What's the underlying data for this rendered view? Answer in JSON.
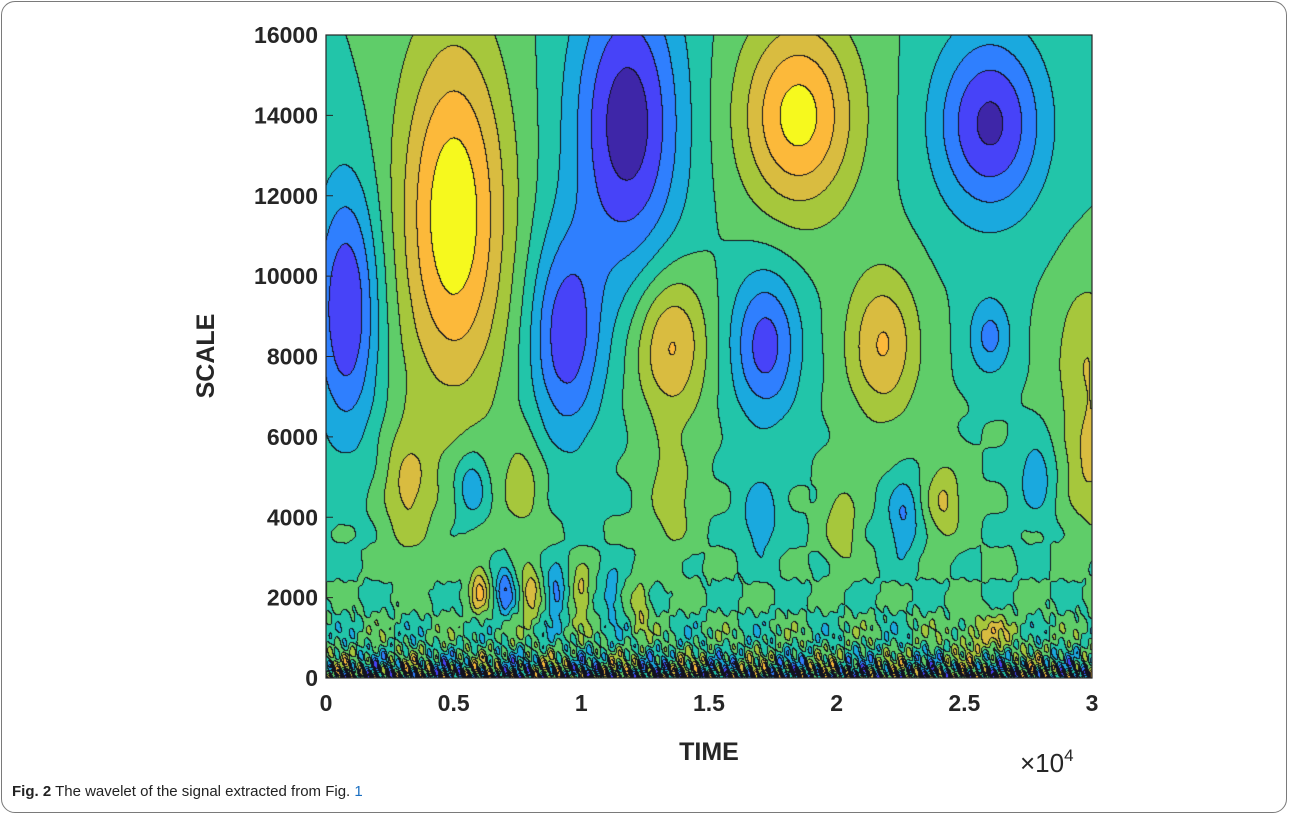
{
  "chart_data": {
    "type": "heatmap",
    "subtype": "filled-contour",
    "title": "",
    "xlabel": "TIME",
    "ylabel": "SCALE",
    "xlim": [
      0,
      30000
    ],
    "ylim": [
      0,
      16000
    ],
    "x_ticks": [
      "0",
      "0.5",
      "1",
      "1.5",
      "2",
      "2.5",
      "3"
    ],
    "x_tick_values": [
      0,
      5000,
      10000,
      15000,
      20000,
      25000,
      30000
    ],
    "x_multiplier": "×10",
    "x_multiplier_exp": "4",
    "y_ticks": [
      "0",
      "2000",
      "4000",
      "6000",
      "8000",
      "10000",
      "12000",
      "14000",
      "16000"
    ],
    "y_tick_values": [
      0,
      2000,
      4000,
      6000,
      8000,
      10000,
      12000,
      14000,
      16000
    ],
    "colormap": [
      "#3e26a8",
      "#4743f8",
      "#2f7ffe",
      "#1aa9de",
      "#22c5a9",
      "#5fcd69",
      "#a6c73c",
      "#d9bc40",
      "#fcb93a",
      "#f6f91e"
    ],
    "features": [
      {
        "x": 5000,
        "y": 11500,
        "sx": 1500,
        "sy": 3200,
        "a": 1.25
      },
      {
        "x": 18500,
        "y": 14000,
        "sx": 1600,
        "sy": 1700,
        "a": 1.15
      },
      {
        "x": 11800,
        "y": 13800,
        "sx": 1500,
        "sy": 2600,
        "a": -1.2
      },
      {
        "x": 800,
        "y": 9200,
        "sx": 900,
        "sy": 2200,
        "a": -1.05
      },
      {
        "x": 9400,
        "y": 8500,
        "sx": 1000,
        "sy": 1800,
        "a": -0.95
      },
      {
        "x": 26000,
        "y": 13800,
        "sx": 1500,
        "sy": 1600,
        "a": -1.1
      },
      {
        "x": 13500,
        "y": 8300,
        "sx": 1000,
        "sy": 1300,
        "a": 0.85
      },
      {
        "x": 17200,
        "y": 8300,
        "sx": 950,
        "sy": 1300,
        "a": -0.9
      },
      {
        "x": 21800,
        "y": 8300,
        "sx": 1000,
        "sy": 1300,
        "a": 0.8
      },
      {
        "x": 26000,
        "y": 8500,
        "sx": 600,
        "sy": 700,
        "a": -0.6
      },
      {
        "x": 29800,
        "y": 8000,
        "sx": 900,
        "sy": 1400,
        "a": 0.5
      },
      {
        "x": 3200,
        "y": 4700,
        "sx": 700,
        "sy": 1100,
        "a": 0.55
      },
      {
        "x": 5700,
        "y": 4800,
        "sx": 450,
        "sy": 600,
        "a": -0.55
      },
      {
        "x": 7700,
        "y": 4800,
        "sx": 600,
        "sy": 900,
        "a": 0.4
      },
      {
        "x": 13500,
        "y": 4500,
        "sx": 600,
        "sy": 1000,
        "a": 0.45
      },
      {
        "x": 17000,
        "y": 4000,
        "sx": 500,
        "sy": 700,
        "a": -0.5
      },
      {
        "x": 20200,
        "y": 3800,
        "sx": 450,
        "sy": 700,
        "a": 0.5
      },
      {
        "x": 22600,
        "y": 4000,
        "sx": 450,
        "sy": 700,
        "a": -0.55
      },
      {
        "x": 24200,
        "y": 4400,
        "sx": 500,
        "sy": 700,
        "a": 0.55
      },
      {
        "x": 27800,
        "y": 5000,
        "sx": 500,
        "sy": 700,
        "a": -0.45
      },
      {
        "x": 29900,
        "y": 5200,
        "sx": 700,
        "sy": 1100,
        "a": 0.5
      },
      {
        "x": 6000,
        "y": 2200,
        "sx": 250,
        "sy": 450,
        "a": 0.75
      },
      {
        "x": 7000,
        "y": 2200,
        "sx": 250,
        "sy": 450,
        "a": -0.75
      },
      {
        "x": 8000,
        "y": 2100,
        "sx": 250,
        "sy": 450,
        "a": 0.75
      },
      {
        "x": 9000,
        "y": 2100,
        "sx": 250,
        "sy": 450,
        "a": -0.7
      },
      {
        "x": 10000,
        "y": 2100,
        "sx": 250,
        "sy": 450,
        "a": 0.7
      },
      {
        "x": 11200,
        "y": 2100,
        "sx": 250,
        "sy": 450,
        "a": -0.5
      },
      {
        "x": 12300,
        "y": 1800,
        "sx": 250,
        "sy": 450,
        "a": 0.55
      },
      {
        "x": 25800,
        "y": 1100,
        "sx": 900,
        "sy": 350,
        "a": 0.5
      }
    ]
  },
  "caption": {
    "label": "Fig. 2",
    "text": " The wavelet of the signal extracted from Fig. ",
    "ref": "1"
  }
}
